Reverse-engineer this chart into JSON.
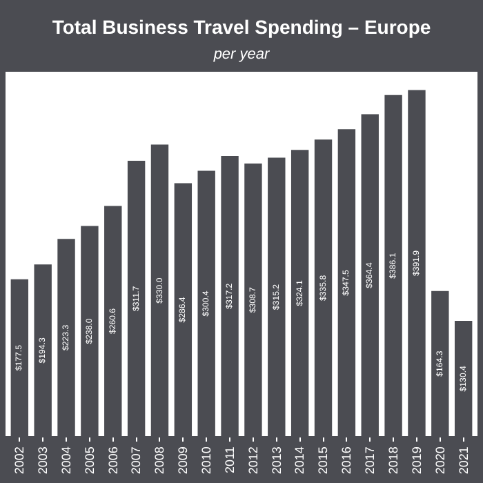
{
  "chart_data": {
    "type": "bar",
    "title": "Total Business Travel Spending – Europe",
    "subtitle": "per year",
    "categories": [
      "2002",
      "2003",
      "2004",
      "2005",
      "2006",
      "2007",
      "2008",
      "2009",
      "2010",
      "2011",
      "2012",
      "2013",
      "2014",
      "2015",
      "2016",
      "2017",
      "2018",
      "2019",
      "2020",
      "2021"
    ],
    "values": [
      177.5,
      194.3,
      223.3,
      238.0,
      260.6,
      311.7,
      330.0,
      286.4,
      300.4,
      317.2,
      308.7,
      315.2,
      324.1,
      335.8,
      347.5,
      364.4,
      386.1,
      391.9,
      164.3,
      130.4
    ],
    "value_labels": [
      "$177.5",
      "$194.3",
      "$223.3",
      "$238.0",
      "$260.6",
      "$311.7",
      "$330.0",
      "$286.4",
      "$300.4",
      "$317.2",
      "$308.7",
      "$315.2",
      "$324.1",
      "$335.8",
      "$347.5",
      "$364.4",
      "$386.1",
      "$391.9",
      "$164.3",
      "$130.4"
    ],
    "color": "#4b4c52",
    "grid": false,
    "legend": false
  }
}
